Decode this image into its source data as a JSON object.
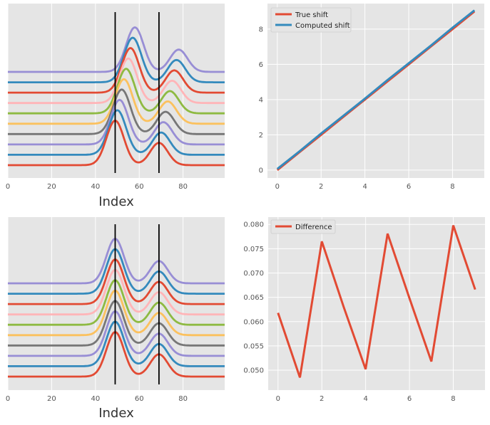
{
  "palette": [
    "#e24a33",
    "#348abd",
    "#988ed5",
    "#777777",
    "#fbc15e",
    "#8eba42",
    "#ffb5b8"
  ],
  "chart_data": [
    {
      "id": "shifted_signals",
      "type": "line",
      "title": "",
      "xlabel": "Index",
      "ylabel": "",
      "xlim": [
        0,
        99
      ],
      "xticks": [
        0,
        20,
        40,
        60,
        80
      ],
      "yticks_visible": false,
      "grid": true,
      "n_series": 10,
      "offset_step": 1,
      "signal": {
        "peak1": {
          "center": 58,
          "amplitude": 1.0,
          "width": 4
        },
        "peak2": {
          "center": 78,
          "amplitude": 0.5,
          "width": 4
        }
      },
      "shifts": [
        9,
        8,
        7,
        6,
        5,
        4,
        3,
        2,
        1,
        0
      ],
      "vlines": [
        49,
        69
      ]
    },
    {
      "id": "shift_estimation",
      "type": "line",
      "title": "",
      "xlabel": "",
      "ylabel": "",
      "xlim": [
        -0.45,
        9.45
      ],
      "ylim": [
        -0.45,
        9.45
      ],
      "xticks": [
        0,
        2,
        4,
        6,
        8
      ],
      "yticks": [
        0,
        2,
        4,
        6,
        8
      ],
      "grid": true,
      "legend_location": "upper-left",
      "series": [
        {
          "name": "True shift",
          "color": "#e24a33",
          "x": [
            0,
            1,
            2,
            3,
            4,
            5,
            6,
            7,
            8,
            9
          ],
          "values": [
            0,
            1,
            2,
            3,
            4,
            5,
            6,
            7,
            8,
            9
          ]
        },
        {
          "name": "Computed shift",
          "color": "#348abd",
          "x": [
            0,
            1,
            2,
            3,
            4,
            5,
            6,
            7,
            8,
            9
          ],
          "values": [
            0.062,
            1.048,
            2.077,
            3.063,
            4.05,
            5.078,
            6.065,
            7.052,
            8.08,
            9.067
          ]
        }
      ]
    },
    {
      "id": "aligned_signals",
      "type": "line",
      "title": "",
      "xlabel": "Index",
      "ylabel": "",
      "xlim": [
        0,
        99
      ],
      "xticks": [
        0,
        20,
        40,
        60,
        80
      ],
      "yticks_visible": false,
      "grid": true,
      "n_series": 10,
      "offset_step": 1,
      "signal": {
        "peak1": {
          "center": 49,
          "amplitude": 1.0,
          "width": 4
        },
        "peak2": {
          "center": 69,
          "amplitude": 0.5,
          "width": 4
        }
      },
      "vlines": [
        49,
        69
      ]
    },
    {
      "id": "difference",
      "type": "line",
      "title": "",
      "xlabel": "",
      "ylabel": "",
      "xlim": [
        -0.45,
        9.45
      ],
      "ylim": [
        0.0459,
        0.0815
      ],
      "xticks": [
        0,
        2,
        4,
        6,
        8
      ],
      "yticks": [
        0.05,
        0.055,
        0.06,
        0.065,
        0.07,
        0.075,
        0.08
      ],
      "ytick_labels": [
        "0.050",
        "0.055",
        "0.060",
        "0.065",
        "0.070",
        "0.075",
        "0.080"
      ],
      "grid": true,
      "legend_location": "upper-left",
      "series": [
        {
          "name": "Difference",
          "color": "#e24a33",
          "x": [
            0,
            1,
            2,
            3,
            4,
            5,
            6,
            7,
            8,
            9
          ],
          "values": [
            0.0618,
            0.0485,
            0.0765,
            0.063,
            0.0502,
            0.0781,
            0.0648,
            0.0518,
            0.0798,
            0.0666
          ]
        }
      ]
    }
  ]
}
